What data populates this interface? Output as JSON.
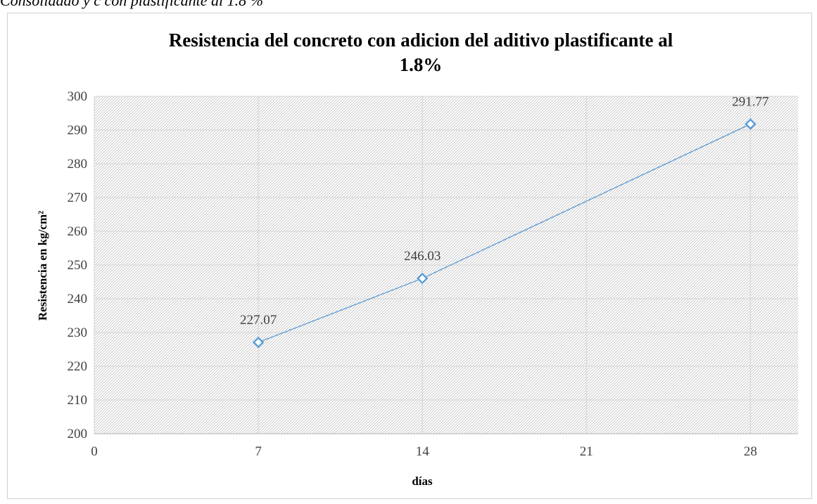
{
  "caption": "Consolidado y c con plastificante al 1.8 %",
  "chart_data": {
    "type": "line",
    "title_lines": [
      "Resistencia del concreto con adicion del aditivo plastificante al",
      "1.8%"
    ],
    "xlabel": "días",
    "ylabel": "Resistencia en kg/cm²",
    "xlim": [
      0,
      30
    ],
    "ylim": [
      200,
      300
    ],
    "xticks": [
      0,
      7,
      14,
      21,
      28
    ],
    "yticks": [
      200,
      210,
      220,
      230,
      240,
      250,
      260,
      270,
      280,
      290,
      300
    ],
    "grid": true,
    "legend": "none",
    "series": [
      {
        "x": [
          7,
          14,
          28
        ],
        "values": [
          227.07,
          246.03,
          291.77
        ],
        "labels": [
          "227.07",
          "246.03",
          "291.77"
        ],
        "color": "#5b9bd5",
        "marker": "diamond"
      }
    ]
  }
}
